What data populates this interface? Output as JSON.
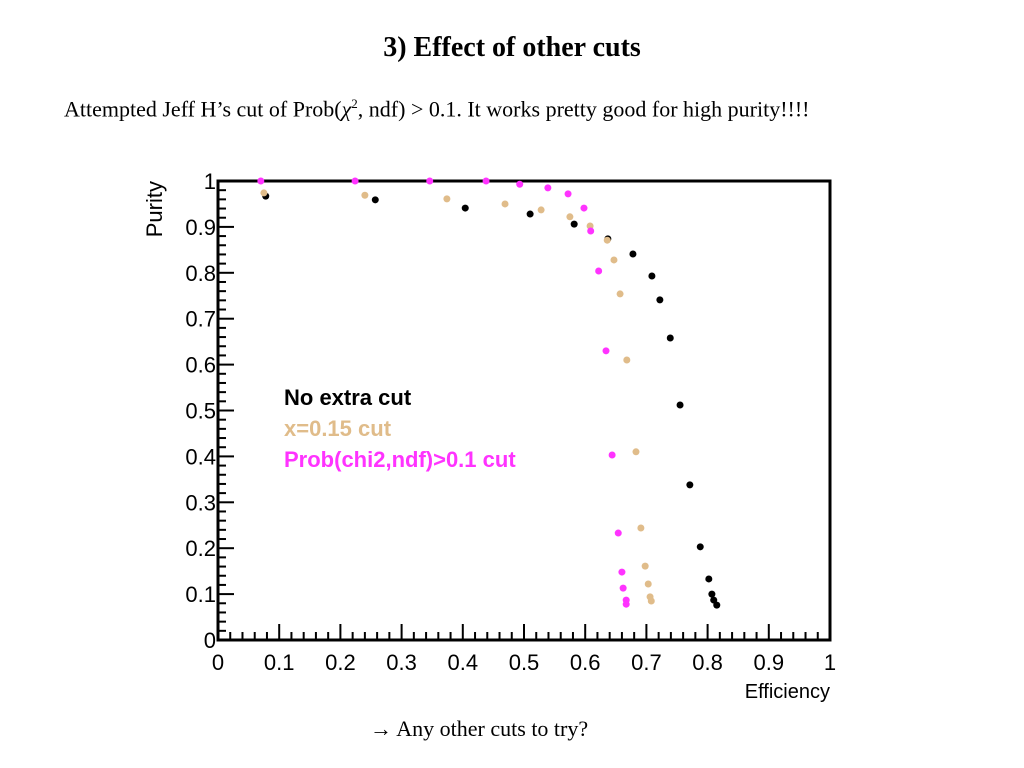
{
  "title": "3) Effect of other cuts",
  "subtitle": {
    "before": "Attempted Jeff H’s cut of Prob(",
    "chi": "χ",
    "sup": "2",
    "after": ", ndf) > 0.1. It works pretty good  for high purity!!!!"
  },
  "footer": "→ Any other cuts to try?",
  "chart_data": {
    "type": "scatter",
    "xlabel": "Efficiency",
    "ylabel": "Purity",
    "xlim": [
      0,
      1
    ],
    "ylim": [
      0,
      1
    ],
    "xticks": [
      "0",
      "0.1",
      "0.2",
      "0.3",
      "0.4",
      "0.5",
      "0.6",
      "0.7",
      "0.8",
      "0.9",
      "1"
    ],
    "yticks": [
      "0",
      "0.1",
      "0.2",
      "0.3",
      "0.4",
      "0.5",
      "0.6",
      "0.7",
      "0.8",
      "0.9",
      "1"
    ],
    "legend_placement": "center-left inside",
    "series": [
      {
        "name": "No extra cut",
        "color": "#000000",
        "x": [
          0.078,
          0.257,
          0.404,
          0.51,
          0.582,
          0.637,
          0.678,
          0.709,
          0.722,
          0.739,
          0.755,
          0.771,
          0.788,
          0.802,
          0.807,
          0.81,
          0.815
        ],
        "y": [
          0.967,
          0.959,
          0.941,
          0.928,
          0.906,
          0.874,
          0.841,
          0.793,
          0.741,
          0.658,
          0.512,
          0.338,
          0.203,
          0.133,
          0.1,
          0.087,
          0.076
        ]
      },
      {
        "name": "x=0.15 cut",
        "color": "#e0bc8a",
        "x": [
          0.075,
          0.24,
          0.374,
          0.469,
          0.528,
          0.575,
          0.608,
          0.636,
          0.647,
          0.657,
          0.668,
          0.683,
          0.691,
          0.698,
          0.703,
          0.706,
          0.708
        ],
        "y": [
          0.974,
          0.969,
          0.961,
          0.95,
          0.937,
          0.922,
          0.902,
          0.871,
          0.828,
          0.754,
          0.61,
          0.41,
          0.244,
          0.161,
          0.122,
          0.094,
          0.085
        ]
      },
      {
        "name": "Prob(chi2,ndf)>0.1 cut",
        "color": "#ff33ff",
        "x": [
          0.07,
          0.224,
          0.346,
          0.438,
          0.493,
          0.539,
          0.572,
          0.598,
          0.609,
          0.622,
          0.634,
          0.644,
          0.654,
          0.66,
          0.662,
          0.667,
          0.667
        ],
        "y": [
          1.0,
          1.0,
          1.0,
          1.0,
          0.993,
          0.985,
          0.972,
          0.941,
          0.891,
          0.804,
          0.63,
          0.403,
          0.233,
          0.148,
          0.113,
          0.087,
          0.078
        ]
      }
    ]
  }
}
